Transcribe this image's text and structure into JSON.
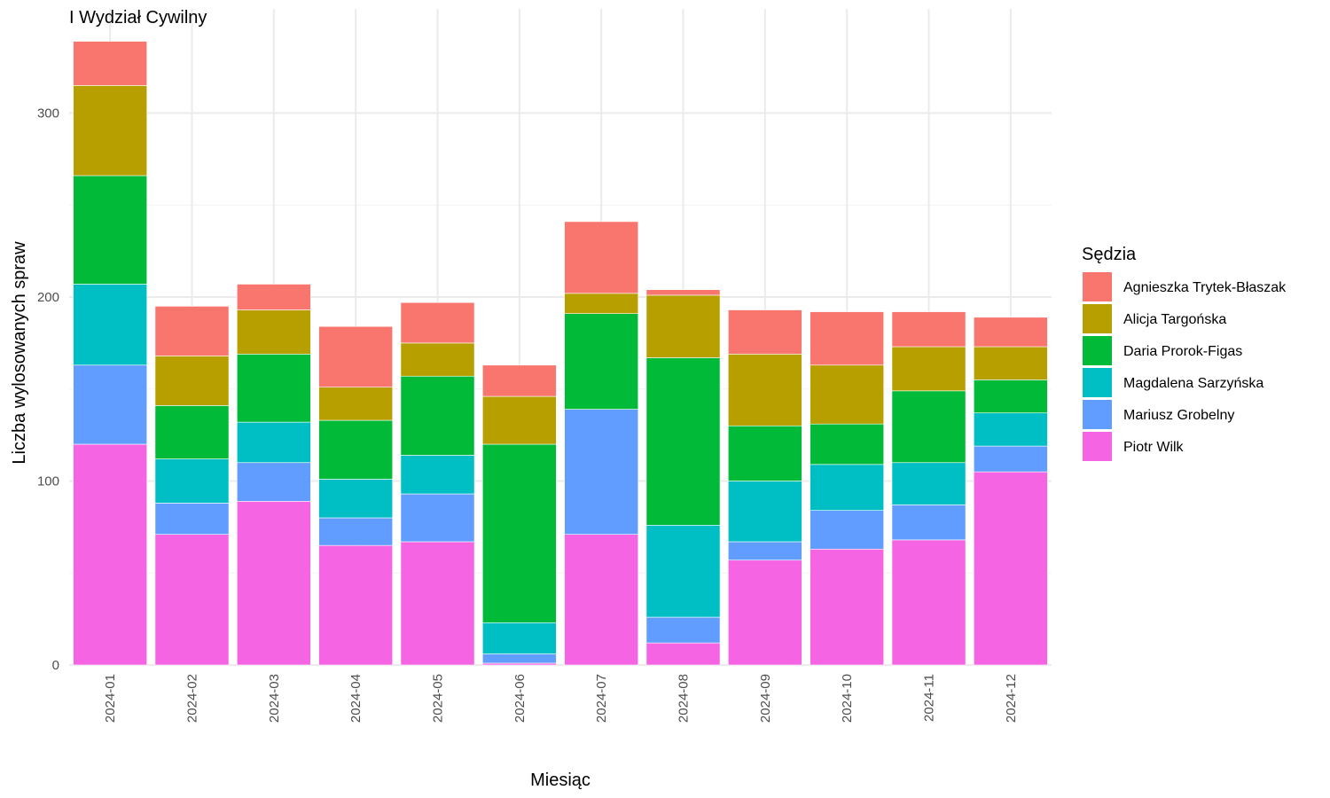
{
  "chart_data": {
    "type": "bar",
    "stacked": true,
    "title": "I Wydział Cywilny",
    "xlabel": "Miesiąc",
    "ylabel": "Liczba wylosowanych spraw",
    "ylim": [
      0,
      340
    ],
    "yticks": [
      0,
      100,
      200,
      300
    ],
    "grid": true,
    "legend_title": "Sędzia",
    "legend_position": "right",
    "categories": [
      "2024-01",
      "2024-02",
      "2024-03",
      "2024-04",
      "2024-05",
      "2024-06",
      "2024-07",
      "2024-08",
      "2024-09",
      "2024-10",
      "2024-11",
      "2024-12"
    ],
    "series": [
      {
        "name": "Piotr Wilk",
        "color": "#F564E3",
        "values": [
          120,
          71,
          89,
          65,
          67,
          1,
          71,
          12,
          57,
          63,
          68,
          105
        ]
      },
      {
        "name": "Mariusz Grobelny",
        "color": "#619CFF",
        "values": [
          43,
          17,
          21,
          15,
          26,
          5,
          68,
          14,
          10,
          21,
          19,
          14
        ]
      },
      {
        "name": "Magdalena Sarzyńska",
        "color": "#00BFC4",
        "values": [
          44,
          24,
          22,
          21,
          21,
          17,
          0,
          50,
          33,
          25,
          23,
          18
        ]
      },
      {
        "name": "Daria Prorok-Figas",
        "color": "#00BA38",
        "values": [
          59,
          29,
          37,
          32,
          43,
          97,
          52,
          91,
          30,
          22,
          39,
          18
        ]
      },
      {
        "name": "Alicja Targońska",
        "color": "#B79F00",
        "values": [
          49,
          27,
          24,
          18,
          18,
          26,
          11,
          34,
          39,
          32,
          24,
          18
        ]
      },
      {
        "name": "Agnieszka Trytek-Błaszak",
        "color": "#F8766D",
        "values": [
          24,
          27,
          14,
          33,
          22,
          17,
          39,
          3,
          24,
          29,
          19,
          16
        ]
      }
    ],
    "legend_order": [
      "Agnieszka Trytek-Błaszak",
      "Alicja Targońska",
      "Daria Prorok-Figas",
      "Magdalena Sarzyńska",
      "Mariusz Grobelny",
      "Piotr Wilk"
    ]
  }
}
